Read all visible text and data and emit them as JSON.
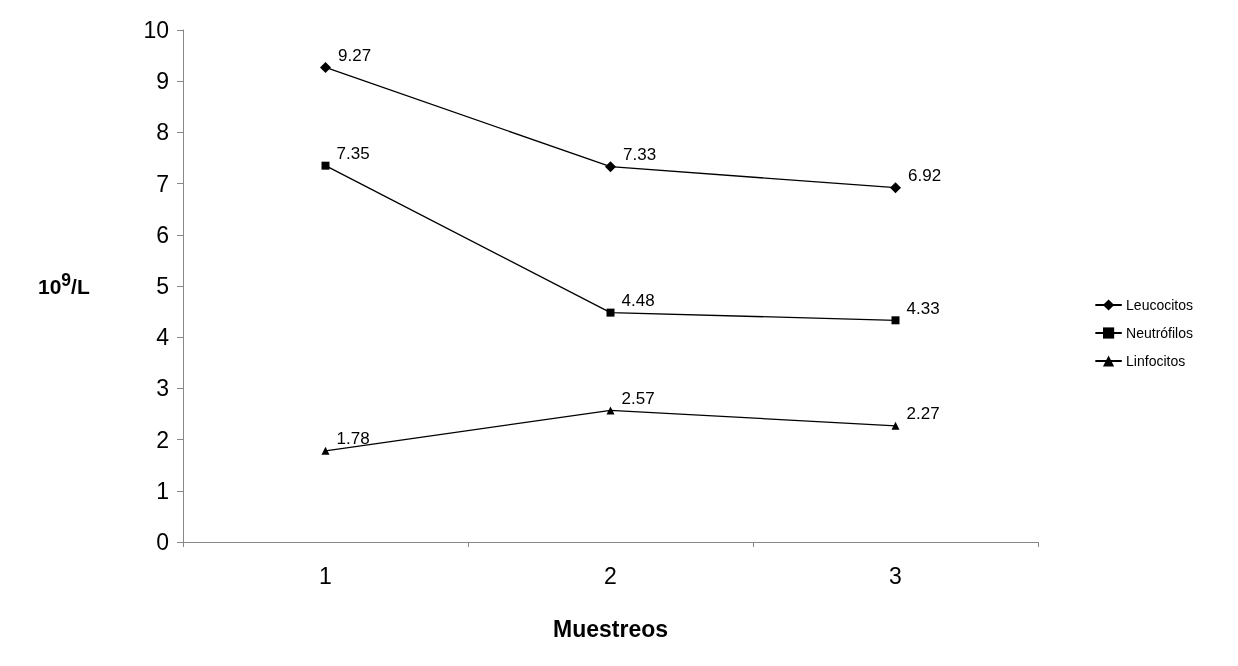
{
  "chart_data": {
    "type": "line",
    "xlabel": "Muestreos",
    "ylabel": "10$^{9}$/L",
    "categories": [
      "1",
      "2",
      "3"
    ],
    "series": [
      {
        "name": "Leucocitos",
        "color": "#000000",
        "marker": "diamond",
        "values": [
          9.27,
          7.33,
          6.92
        ]
      },
      {
        "name": "Neutrófilos",
        "color": "#000000",
        "marker": "square",
        "values": [
          7.35,
          4.48,
          4.33
        ]
      },
      {
        "name": "Linfocitos",
        "color": "#000000",
        "marker": "triangle",
        "values": [
          1.78,
          2.57,
          2.27
        ]
      }
    ],
    "ylim": [
      0,
      10
    ],
    "yticks": [
      0,
      1,
      2,
      3,
      4,
      5,
      6,
      7,
      8,
      9,
      10
    ],
    "grid": false,
    "legend": "right",
    "data_labels": true,
    "line_style": "solid"
  }
}
